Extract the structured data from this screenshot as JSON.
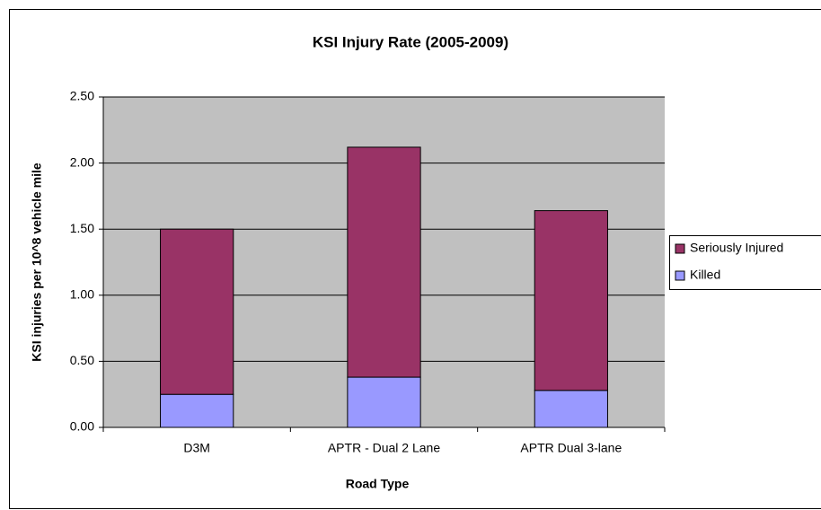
{
  "chart_data": {
    "type": "stacked_bar",
    "title": "KSI Injury Rate (2005-2009)",
    "x_label": "Road Type",
    "y_label": "KSI injuries per 10^8 vehicle mile",
    "categories": [
      "D3M",
      "APTR - Dual 2 Lane",
      "APTR Dual 3-lane"
    ],
    "series": [
      {
        "name": "Killed",
        "color": "#9999ff",
        "values": [
          0.25,
          0.38,
          0.28
        ]
      },
      {
        "name": "Seriously Injured",
        "color": "#993366",
        "values": [
          1.25,
          1.74,
          1.36
        ]
      }
    ],
    "ylim": [
      0,
      2.5
    ],
    "yticks": [
      {
        "value": 0,
        "label": "0.00"
      },
      {
        "value": 0.5,
        "label": "0.50"
      },
      {
        "value": 1,
        "label": "1.00"
      },
      {
        "value": 1.5,
        "label": "1.50"
      },
      {
        "value": 2,
        "label": "2.00"
      },
      {
        "value": 2.5,
        "label": "2.50"
      }
    ],
    "grid": true,
    "legend": "right"
  }
}
